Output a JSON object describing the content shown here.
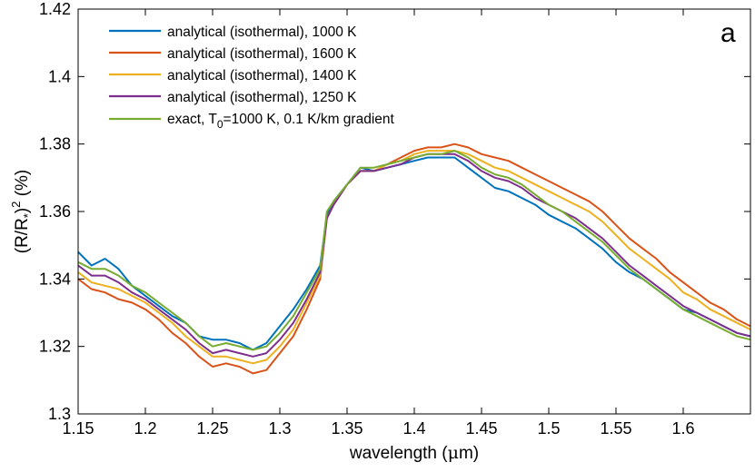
{
  "chart_data": {
    "type": "line",
    "panel_label": "a",
    "xlabel_prefix": "wavelength (",
    "xlabel_mu": "μ",
    "xlabel_suffix": "m)",
    "ylabel_parts": {
      "open": "(R/R",
      "star": "*",
      "close": ")",
      "exp": "2",
      "unit": " (%)"
    },
    "xlim": [
      1.15,
      1.65
    ],
    "ylim": [
      1.3,
      1.42
    ],
    "x_ticks": [
      1.15,
      1.2,
      1.25,
      1.3,
      1.35,
      1.4,
      1.45,
      1.5,
      1.55,
      1.6
    ],
    "x_tick_labels": [
      "1.15",
      "1.2",
      "1.25",
      "1.3",
      "1.35",
      "1.4",
      "1.45",
      "1.5",
      "1.55",
      "1.6"
    ],
    "y_ticks": [
      1.3,
      1.32,
      1.34,
      1.36,
      1.38,
      1.4,
      1.42
    ],
    "y_tick_labels": [
      "1.3",
      "1.32",
      "1.34",
      "1.36",
      "1.38",
      "1.4",
      "1.42"
    ],
    "grid": false,
    "legend_position": "top-left",
    "legend": {
      "s0": "analytical (isothermal), 1000 K",
      "s1": "analytical (isothermal), 1600 K",
      "s2": "analytical (isothermal), 1400 K",
      "s3": "analytical (isothermal), 1250 K",
      "s4_pre": "exact, T",
      "s4_sub": "0",
      "s4_post": "=1000 K, 0.1 K/km gradient"
    },
    "x": [
      1.15,
      1.16,
      1.17,
      1.18,
      1.19,
      1.2,
      1.21,
      1.22,
      1.23,
      1.24,
      1.25,
      1.26,
      1.27,
      1.28,
      1.29,
      1.3,
      1.31,
      1.32,
      1.33,
      1.335,
      1.34,
      1.35,
      1.36,
      1.37,
      1.38,
      1.39,
      1.4,
      1.41,
      1.42,
      1.43,
      1.44,
      1.45,
      1.46,
      1.47,
      1.48,
      1.49,
      1.5,
      1.51,
      1.52,
      1.53,
      1.54,
      1.55,
      1.56,
      1.57,
      1.58,
      1.59,
      1.6,
      1.61,
      1.62,
      1.63,
      1.64,
      1.65
    ],
    "series": [
      {
        "color": "#0072BD",
        "values": [
          1.348,
          1.344,
          1.346,
          1.343,
          1.338,
          1.335,
          1.332,
          1.329,
          1.327,
          1.323,
          1.322,
          1.322,
          1.321,
          1.319,
          1.321,
          1.326,
          1.331,
          1.337,
          1.344,
          1.359,
          1.363,
          1.368,
          1.373,
          1.372,
          1.373,
          1.374,
          1.375,
          1.376,
          1.376,
          1.376,
          1.373,
          1.37,
          1.367,
          1.366,
          1.364,
          1.362,
          1.359,
          1.357,
          1.355,
          1.352,
          1.349,
          1.345,
          1.342,
          1.34,
          1.337,
          1.334,
          1.331,
          1.33,
          1.328,
          1.326,
          1.324,
          1.323
        ]
      },
      {
        "color": "#D95319",
        "values": [
          1.34,
          1.337,
          1.336,
          1.334,
          1.333,
          1.331,
          1.328,
          1.324,
          1.321,
          1.317,
          1.314,
          1.315,
          1.314,
          1.312,
          1.313,
          1.318,
          1.323,
          1.331,
          1.34,
          1.358,
          1.362,
          1.368,
          1.372,
          1.372,
          1.374,
          1.376,
          1.378,
          1.379,
          1.379,
          1.38,
          1.379,
          1.377,
          1.376,
          1.375,
          1.373,
          1.371,
          1.369,
          1.367,
          1.365,
          1.363,
          1.36,
          1.356,
          1.352,
          1.349,
          1.346,
          1.342,
          1.339,
          1.336,
          1.333,
          1.331,
          1.328,
          1.326
        ]
      },
      {
        "color": "#EDB120",
        "values": [
          1.342,
          1.339,
          1.338,
          1.337,
          1.335,
          1.333,
          1.33,
          1.327,
          1.323,
          1.32,
          1.317,
          1.317,
          1.316,
          1.315,
          1.316,
          1.32,
          1.325,
          1.333,
          1.341,
          1.358,
          1.362,
          1.368,
          1.372,
          1.372,
          1.374,
          1.375,
          1.377,
          1.378,
          1.378,
          1.378,
          1.377,
          1.375,
          1.373,
          1.372,
          1.37,
          1.368,
          1.366,
          1.364,
          1.362,
          1.36,
          1.357,
          1.353,
          1.349,
          1.346,
          1.343,
          1.34,
          1.336,
          1.334,
          1.331,
          1.329,
          1.327,
          1.325
        ]
      },
      {
        "color": "#7E2F8E",
        "values": [
          1.344,
          1.341,
          1.341,
          1.339,
          1.336,
          1.334,
          1.331,
          1.328,
          1.325,
          1.321,
          1.318,
          1.319,
          1.318,
          1.317,
          1.318,
          1.322,
          1.327,
          1.334,
          1.342,
          1.358,
          1.362,
          1.368,
          1.372,
          1.372,
          1.373,
          1.374,
          1.376,
          1.377,
          1.377,
          1.377,
          1.375,
          1.372,
          1.37,
          1.369,
          1.367,
          1.364,
          1.362,
          1.36,
          1.358,
          1.355,
          1.352,
          1.348,
          1.344,
          1.341,
          1.338,
          1.335,
          1.332,
          1.33,
          1.328,
          1.326,
          1.324,
          1.323
        ]
      },
      {
        "color": "#77AC30",
        "values": [
          1.345,
          1.343,
          1.343,
          1.341,
          1.338,
          1.336,
          1.333,
          1.33,
          1.327,
          1.323,
          1.32,
          1.321,
          1.32,
          1.319,
          1.32,
          1.324,
          1.329,
          1.336,
          1.343,
          1.36,
          1.363,
          1.368,
          1.373,
          1.373,
          1.374,
          1.375,
          1.376,
          1.377,
          1.377,
          1.378,
          1.376,
          1.373,
          1.371,
          1.37,
          1.368,
          1.365,
          1.362,
          1.36,
          1.357,
          1.354,
          1.351,
          1.347,
          1.343,
          1.34,
          1.337,
          1.334,
          1.331,
          1.329,
          1.327,
          1.325,
          1.323,
          1.322
        ]
      }
    ]
  }
}
